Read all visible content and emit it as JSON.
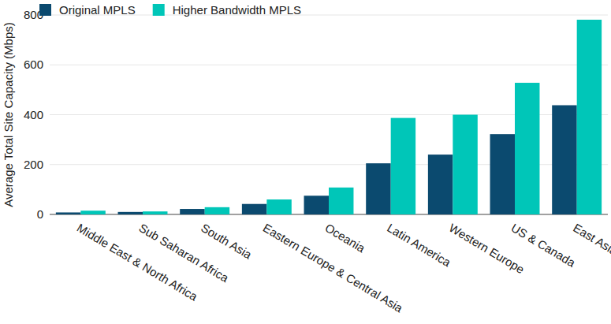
{
  "chart_data": {
    "type": "bar",
    "y_label": "Average Total Site Capacity (Mbps)",
    "categories": [
      "Middle East & North Africa",
      "Sub Saharan Africa",
      "South Asia",
      "Eastern Europe & Central Asia",
      "Oceania",
      "Latin America",
      "Western Europe",
      "US & Canada",
      "East Asia"
    ],
    "series": [
      {
        "name": "Original MPLS",
        "color": "#0b4a6f",
        "values": [
          8,
          10,
          22,
          42,
          75,
          205,
          240,
          322,
          438
        ]
      },
      {
        "name": "Higher Bandwidth MPLS",
        "color": "#00c6b8",
        "values": [
          15,
          12,
          29,
          60,
          108,
          387,
          400,
          528,
          781
        ]
      }
    ],
    "ylim": [
      0,
      800
    ],
    "yticks": [
      0,
      200,
      400,
      600,
      800
    ],
    "grid": true,
    "legend": "top-left"
  }
}
